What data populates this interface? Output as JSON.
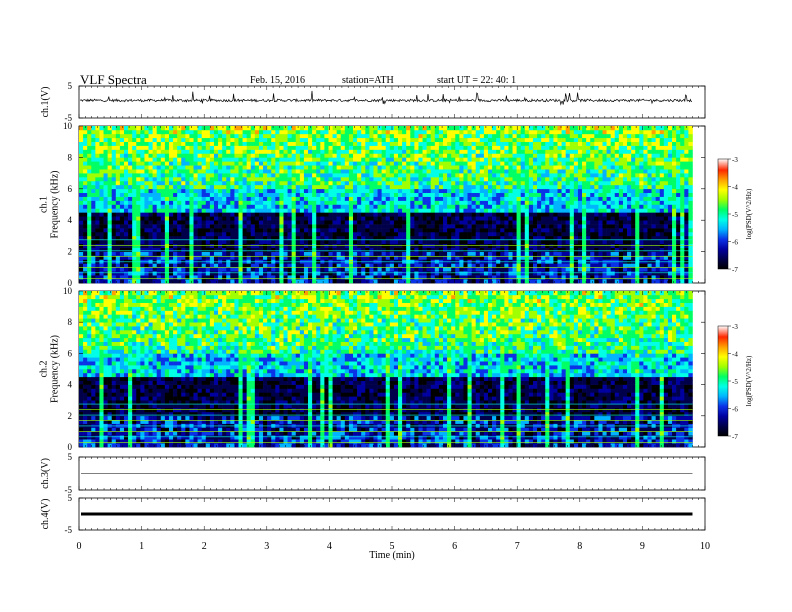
{
  "header": {
    "title": "VLF  Spectra",
    "date": "Feb. 15, 2016",
    "station": "station=ATH",
    "start": "start  UT  =    22: 40: 1"
  },
  "chart_data": [
    {
      "type": "line",
      "panel": "ch1-waveform",
      "ylabel": "ch.1(V)",
      "ylim": [
        -5,
        5
      ],
      "yticks": [
        "5",
        "-5"
      ],
      "baseline_value": 0.5,
      "noise_amplitude": 0.8,
      "x_range_min": [
        0,
        9.8
      ]
    },
    {
      "type": "heatmap",
      "panel": "ch1-spectrogram",
      "ylabel": "ch.1\nFrequency  (kHz)",
      "ylim": [
        0,
        10
      ],
      "yticks": [
        "0",
        "2",
        "4",
        "6",
        "8",
        "10"
      ],
      "x_range_min": [
        0,
        9.8
      ],
      "colorbar": {
        "label": "log(PSD(V^2/Hz)",
        "range": [
          -7,
          -3
        ],
        "ticks": [
          "-7",
          "-6",
          "-5",
          "-4",
          "-3"
        ]
      },
      "description_values": {
        "high_band_kHz": [
          6,
          10
        ],
        "high_band_logpsd": -4.5,
        "low_band_kHz": [
          0,
          4
        ],
        "low_band_logpsd": -6.6
      }
    },
    {
      "type": "heatmap",
      "panel": "ch2-spectrogram",
      "ylabel": "ch.2\nFrequency  (kHz)",
      "ylim": [
        0,
        10
      ],
      "yticks": [
        "0",
        "2",
        "4",
        "6",
        "8",
        "10"
      ],
      "x_range_min": [
        0,
        9.8
      ],
      "colorbar": {
        "label": "log(PSD(V^2/Hz)",
        "range": [
          -7,
          -3
        ],
        "ticks": [
          "-7",
          "-6",
          "-5",
          "-4",
          "-3"
        ]
      }
    },
    {
      "type": "line",
      "panel": "ch3-waveform",
      "ylabel": "ch.3(V)",
      "ylim": [
        -5,
        5
      ],
      "yticks": [
        "5",
        "-5"
      ],
      "baseline_value": 0
    },
    {
      "type": "line",
      "panel": "ch4-waveform",
      "ylabel": "ch.4(V)",
      "ylim": [
        -5,
        5
      ],
      "yticks": [
        "5",
        "-5"
      ],
      "baseline_value": 0
    }
  ],
  "xaxis": {
    "label": "Time  (min)",
    "ticks": [
      "0",
      "1",
      "2",
      "3",
      "4",
      "5",
      "6",
      "7",
      "8",
      "9",
      "10"
    ],
    "range": [
      0,
      10
    ]
  },
  "colors": {
    "palette": [
      "#000000",
      "#00004a",
      "#0000a0",
      "#0a32e6",
      "#00b4ff",
      "#00ffe6",
      "#00ff64",
      "#a0ff00",
      "#ffff00",
      "#ffa000",
      "#ff2800",
      "#ffffff"
    ]
  }
}
